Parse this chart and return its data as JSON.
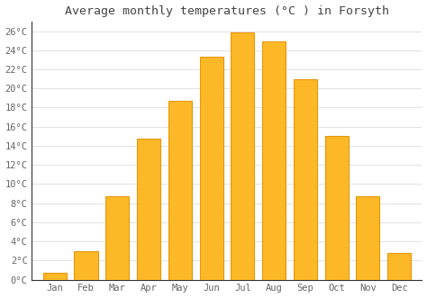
{
  "title": "Average monthly temperatures (°C ) in Forsyth",
  "months": [
    "Jan",
    "Feb",
    "Mar",
    "Apr",
    "May",
    "Jun",
    "Jul",
    "Aug",
    "Sep",
    "Oct",
    "Nov",
    "Dec"
  ],
  "values": [
    0.7,
    3.0,
    8.7,
    14.7,
    18.7,
    23.3,
    25.9,
    24.9,
    21.0,
    15.0,
    8.7,
    2.8
  ],
  "bar_color": "#FDB827",
  "bar_edge_color": "#E8960A",
  "background_color": "#ffffff",
  "grid_color": "#dddddd",
  "ylim": [
    0,
    27
  ],
  "ytick_values": [
    0,
    2,
    4,
    6,
    8,
    10,
    12,
    14,
    16,
    18,
    20,
    22,
    24,
    26
  ],
  "title_fontsize": 9.5,
  "tick_fontsize": 7.5,
  "title_color": "#444444",
  "tick_color": "#666666",
  "font_family": "monospace",
  "bar_width": 0.75
}
